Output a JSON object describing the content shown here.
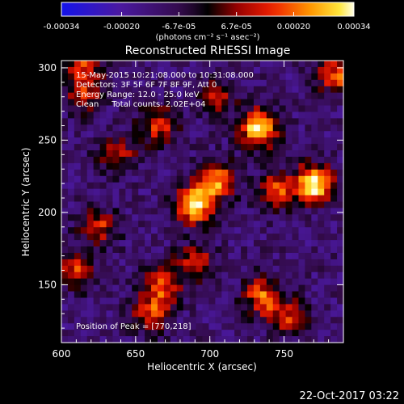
{
  "colorbar": {
    "ticks": [
      "-0.00034",
      "-0.00020",
      "-6.7e-05",
      "6.7e-05",
      "0.00020",
      "0.00034"
    ],
    "tick_values": [
      -0.00034,
      -0.0002,
      -6.7e-05,
      6.7e-05,
      0.0002,
      0.00034
    ],
    "range": [
      -0.00034,
      0.00034
    ],
    "unit_label": "(photons cm⁻² s⁻¹ asec⁻²)"
  },
  "chart_data": {
    "type": "heatmap",
    "title": "Reconstructed RHESSI Image",
    "xlabel": "Heliocentric X (arcsec)",
    "ylabel": "Heliocentric Y (arcsec)",
    "xlim": [
      600,
      790
    ],
    "ylim": [
      110,
      305
    ],
    "x_ticks": [
      600,
      650,
      700,
      750
    ],
    "y_ticks": [
      150,
      200,
      250,
      300
    ],
    "annotation_lines": [
      "15-May-2015 10:21:08.000 to 10:31:08.000",
      "Detectors: 3F 5F 6F 7F 8F 9F, Att 0",
      "Energy Range: 12.0 - 25.0 keV",
      "Clean     Total counts: 2.02E+04"
    ],
    "peak_label": "Position of Peak = [770,218]",
    "peak": {
      "x": 770,
      "y": 218
    },
    "bright_sources": [
      {
        "x": 770,
        "y": 220,
        "level": 1.0
      },
      {
        "x": 733,
        "y": 258,
        "level": 0.9
      },
      {
        "x": 690,
        "y": 205,
        "level": 0.85
      },
      {
        "x": 705,
        "y": 222,
        "level": 0.7
      },
      {
        "x": 638,
        "y": 240,
        "level": 0.45
      },
      {
        "x": 665,
        "y": 260,
        "level": 0.55
      },
      {
        "x": 735,
        "y": 142,
        "level": 0.6
      },
      {
        "x": 752,
        "y": 128,
        "level": 0.5
      },
      {
        "x": 785,
        "y": 295,
        "level": 0.6
      },
      {
        "x": 745,
        "y": 215,
        "level": 0.55
      },
      {
        "x": 625,
        "y": 190,
        "level": 0.5
      },
      {
        "x": 610,
        "y": 160,
        "level": 0.5
      },
      {
        "x": 668,
        "y": 150,
        "level": 0.55
      },
      {
        "x": 690,
        "y": 165,
        "level": 0.5
      },
      {
        "x": 615,
        "y": 300,
        "level": 0.5
      },
      {
        "x": 615,
        "y": 280,
        "level": 0.4
      },
      {
        "x": 660,
        "y": 130,
        "level": 0.55
      },
      {
        "x": 705,
        "y": 280,
        "level": 0.4
      }
    ]
  },
  "footer": {
    "date": "22-Oct-2017 03:22"
  }
}
